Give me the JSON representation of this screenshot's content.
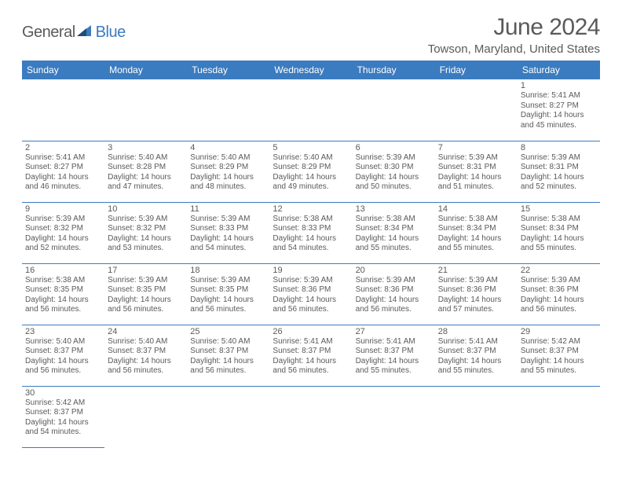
{
  "brand": {
    "part1": "General",
    "part2": "Blue"
  },
  "title": "June 2024",
  "location": "Towson, Maryland, United States",
  "colors": {
    "header_bg": "#3b7bbf",
    "header_fg": "#ffffff",
    "text": "#5a5a5a",
    "cell_border": "#3b7bbf",
    "page_bg": "#ffffff"
  },
  "typography": {
    "title_fontsize": 30,
    "location_fontsize": 15,
    "dayheader_fontsize": 12,
    "daynum_fontsize": 11,
    "body_fontsize": 10
  },
  "day_headers": [
    "Sunday",
    "Monday",
    "Tuesday",
    "Wednesday",
    "Thursday",
    "Friday",
    "Saturday"
  ],
  "weeks": [
    [
      null,
      null,
      null,
      null,
      null,
      null,
      {
        "n": "1",
        "sr": "5:41 AM",
        "ss": "8:27 PM",
        "dl": "14 hours and 45 minutes."
      }
    ],
    [
      {
        "n": "2",
        "sr": "5:41 AM",
        "ss": "8:27 PM",
        "dl": "14 hours and 46 minutes."
      },
      {
        "n": "3",
        "sr": "5:40 AM",
        "ss": "8:28 PM",
        "dl": "14 hours and 47 minutes."
      },
      {
        "n": "4",
        "sr": "5:40 AM",
        "ss": "8:29 PM",
        "dl": "14 hours and 48 minutes."
      },
      {
        "n": "5",
        "sr": "5:40 AM",
        "ss": "8:29 PM",
        "dl": "14 hours and 49 minutes."
      },
      {
        "n": "6",
        "sr": "5:39 AM",
        "ss": "8:30 PM",
        "dl": "14 hours and 50 minutes."
      },
      {
        "n": "7",
        "sr": "5:39 AM",
        "ss": "8:31 PM",
        "dl": "14 hours and 51 minutes."
      },
      {
        "n": "8",
        "sr": "5:39 AM",
        "ss": "8:31 PM",
        "dl": "14 hours and 52 minutes."
      }
    ],
    [
      {
        "n": "9",
        "sr": "5:39 AM",
        "ss": "8:32 PM",
        "dl": "14 hours and 52 minutes."
      },
      {
        "n": "10",
        "sr": "5:39 AM",
        "ss": "8:32 PM",
        "dl": "14 hours and 53 minutes."
      },
      {
        "n": "11",
        "sr": "5:39 AM",
        "ss": "8:33 PM",
        "dl": "14 hours and 54 minutes."
      },
      {
        "n": "12",
        "sr": "5:38 AM",
        "ss": "8:33 PM",
        "dl": "14 hours and 54 minutes."
      },
      {
        "n": "13",
        "sr": "5:38 AM",
        "ss": "8:34 PM",
        "dl": "14 hours and 55 minutes."
      },
      {
        "n": "14",
        "sr": "5:38 AM",
        "ss": "8:34 PM",
        "dl": "14 hours and 55 minutes."
      },
      {
        "n": "15",
        "sr": "5:38 AM",
        "ss": "8:34 PM",
        "dl": "14 hours and 55 minutes."
      }
    ],
    [
      {
        "n": "16",
        "sr": "5:38 AM",
        "ss": "8:35 PM",
        "dl": "14 hours and 56 minutes."
      },
      {
        "n": "17",
        "sr": "5:39 AM",
        "ss": "8:35 PM",
        "dl": "14 hours and 56 minutes."
      },
      {
        "n": "18",
        "sr": "5:39 AM",
        "ss": "8:35 PM",
        "dl": "14 hours and 56 minutes."
      },
      {
        "n": "19",
        "sr": "5:39 AM",
        "ss": "8:36 PM",
        "dl": "14 hours and 56 minutes."
      },
      {
        "n": "20",
        "sr": "5:39 AM",
        "ss": "8:36 PM",
        "dl": "14 hours and 56 minutes."
      },
      {
        "n": "21",
        "sr": "5:39 AM",
        "ss": "8:36 PM",
        "dl": "14 hours and 57 minutes."
      },
      {
        "n": "22",
        "sr": "5:39 AM",
        "ss": "8:36 PM",
        "dl": "14 hours and 56 minutes."
      }
    ],
    [
      {
        "n": "23",
        "sr": "5:40 AM",
        "ss": "8:37 PM",
        "dl": "14 hours and 56 minutes."
      },
      {
        "n": "24",
        "sr": "5:40 AM",
        "ss": "8:37 PM",
        "dl": "14 hours and 56 minutes."
      },
      {
        "n": "25",
        "sr": "5:40 AM",
        "ss": "8:37 PM",
        "dl": "14 hours and 56 minutes."
      },
      {
        "n": "26",
        "sr": "5:41 AM",
        "ss": "8:37 PM",
        "dl": "14 hours and 56 minutes."
      },
      {
        "n": "27",
        "sr": "5:41 AM",
        "ss": "8:37 PM",
        "dl": "14 hours and 55 minutes."
      },
      {
        "n": "28",
        "sr": "5:41 AM",
        "ss": "8:37 PM",
        "dl": "14 hours and 55 minutes."
      },
      {
        "n": "29",
        "sr": "5:42 AM",
        "ss": "8:37 PM",
        "dl": "14 hours and 55 minutes."
      }
    ],
    [
      {
        "n": "30",
        "sr": "5:42 AM",
        "ss": "8:37 PM",
        "dl": "14 hours and 54 minutes."
      },
      null,
      null,
      null,
      null,
      null,
      null
    ]
  ],
  "labels": {
    "sunrise": "Sunrise: ",
    "sunset": "Sunset: ",
    "daylight": "Daylight: "
  }
}
